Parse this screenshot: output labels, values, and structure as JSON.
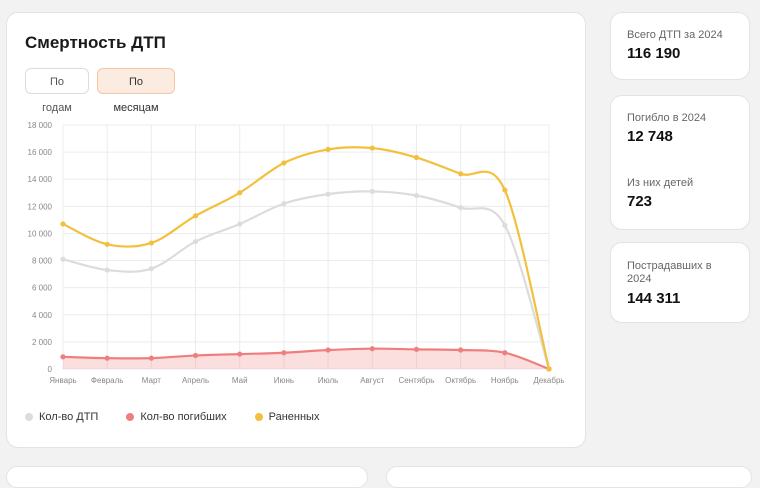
{
  "chart_card": {
    "title": "Смертность ДТП",
    "toggle_years": "По годам",
    "toggle_months": "По месяцам"
  },
  "stats": {
    "total_label": "Всего ДТП за 2024",
    "total_value": "116 190",
    "killed_label": "Погибло в 2024",
    "killed_value": "12 748",
    "children_label": "Из них детей",
    "children_value": "723",
    "injured_label": "Пострадавших в 2024",
    "injured_value": "144 311"
  },
  "colors": {
    "accidents": "#dcdcdc",
    "deaths": "#ef7f7f",
    "injured": "#f2c03c"
  },
  "chart_data": {
    "type": "line",
    "categories": [
      "Январь",
      "Февраль",
      "Март",
      "Апрель",
      "Май",
      "Июнь",
      "Июль",
      "Август",
      "Сентябрь",
      "Октябрь",
      "Ноябрь",
      "Декабрь"
    ],
    "ylim": [
      0,
      18000
    ],
    "yticks": [
      "0",
      "2 000",
      "4 000",
      "6 000",
      "8 000",
      "10 000",
      "12 000",
      "14 000",
      "16 000",
      "18 000"
    ],
    "grid": true,
    "legend_position": "bottom-left",
    "series": [
      {
        "name": "Кол-во ДТП",
        "values": [
          8100,
          7300,
          7400,
          9400,
          10700,
          12200,
          12900,
          13100,
          12800,
          11900,
          10600,
          0
        ]
      },
      {
        "name": "Кол-во погибших",
        "values": [
          900,
          800,
          800,
          1000,
          1100,
          1200,
          1400,
          1500,
          1450,
          1400,
          1200,
          0
        ]
      },
      {
        "name": "Раненных",
        "values": [
          10700,
          9200,
          9300,
          11300,
          13000,
          15200,
          16200,
          16300,
          15600,
          14400,
          13200,
          0
        ]
      }
    ]
  }
}
